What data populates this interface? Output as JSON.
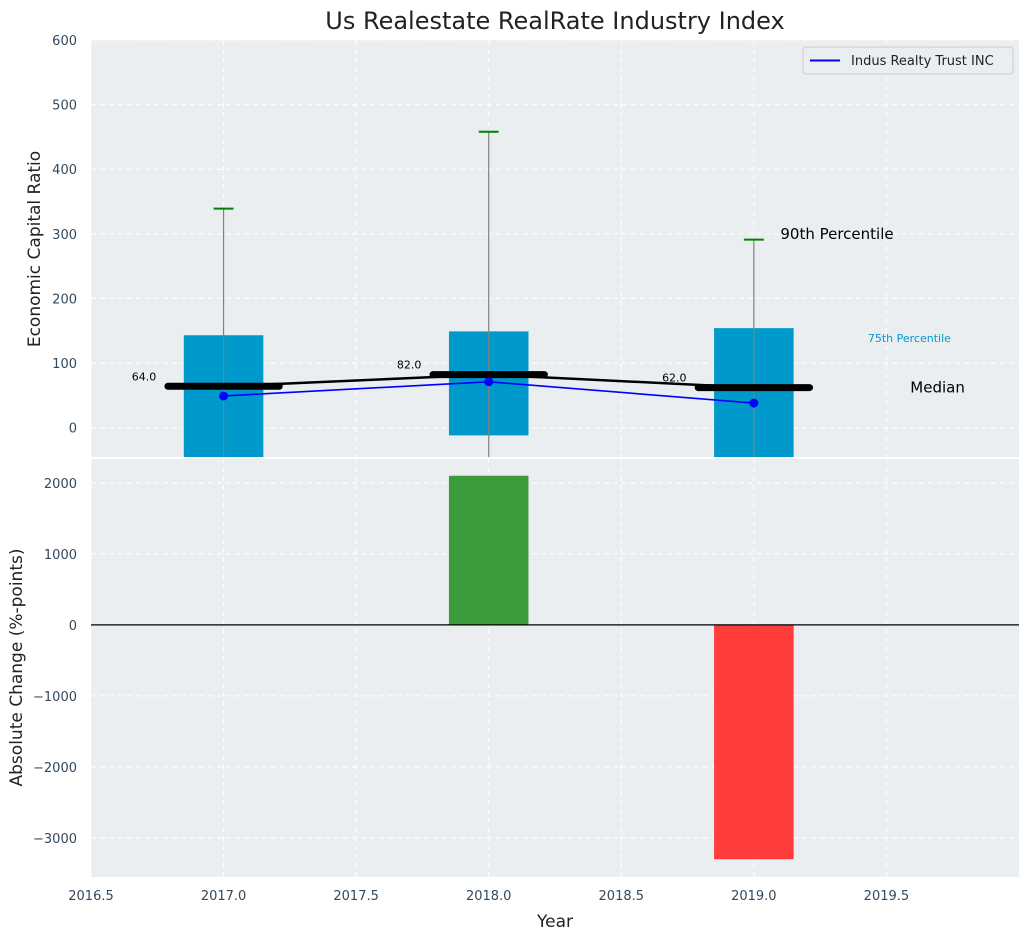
{
  "chart_data": [
    {
      "type": "bar",
      "title": "Us Realestate RealRate Industry Index",
      "ylabel": "Economic Capital Ratio",
      "ylim": [
        -47,
        600
      ],
      "yticks": [
        0,
        100,
        200,
        300,
        400,
        500,
        600
      ],
      "xlim": [
        2016.5,
        2020.0
      ],
      "grid": true,
      "legend_position": "top-right",
      "legend": [
        {
          "label": "Indus Realty Trust INC",
          "color": "#0000ff"
        }
      ],
      "categories": [
        2017,
        2018,
        2019
      ],
      "box_lower": [
        -47,
        -12,
        -47
      ],
      "box_upper": [
        143,
        149,
        154
      ],
      "percentile_90": [
        339,
        458,
        291
      ],
      "median": [
        64.0,
        82.0,
        62.0
      ],
      "median_labels": [
        "64.0",
        "82.0",
        "62.0"
      ],
      "series": [
        {
          "name": "Indus Realty Trust INC",
          "x": [
            2017,
            2018,
            2019
          ],
          "values": [
            49,
            71,
            38
          ],
          "color": "#0000ff"
        }
      ],
      "annotations": [
        {
          "text": "90th Percentile",
          "x": 2019.1,
          "y": 300
        },
        {
          "text": "75th Percentile",
          "x": 2019.43,
          "y": 140
        },
        {
          "text": "Median",
          "x": 2019.59,
          "y": 62
        }
      ],
      "colors": {
        "box": "#0099cc",
        "median": "#000000",
        "whisker": "#808080",
        "percentile_cap": "#008000",
        "series": "#0000ff",
        "annotation_75": "#0099cc",
        "panel_bg": "#eaeef0"
      }
    },
    {
      "type": "bar",
      "xlabel": "Year",
      "ylabel": "Absolute Change (%-points)",
      "ylim": [
        -3550,
        2350
      ],
      "yticks": [
        -3000,
        -2000,
        -1000,
        0,
        1000,
        2000
      ],
      "ytick_labels": [
        "−3000",
        "−2000",
        "−1000",
        "0",
        "1000",
        "2000"
      ],
      "xticks": [
        2016.5,
        2017.0,
        2017.5,
        2018.0,
        2018.5,
        2019.0,
        2019.5
      ],
      "xtick_labels": [
        "2016.5",
        "2017.0",
        "2017.5",
        "2018.0",
        "2018.5",
        "2019.0",
        "2019.5"
      ],
      "xlim": [
        2016.5,
        2020.0
      ],
      "grid": true,
      "categories": [
        2018,
        2019
      ],
      "values": [
        2100,
        -3300
      ],
      "colors": {
        "positive": "#3c9c3c",
        "negative": "#ff3c3c",
        "zero_line": "#000000"
      }
    }
  ]
}
